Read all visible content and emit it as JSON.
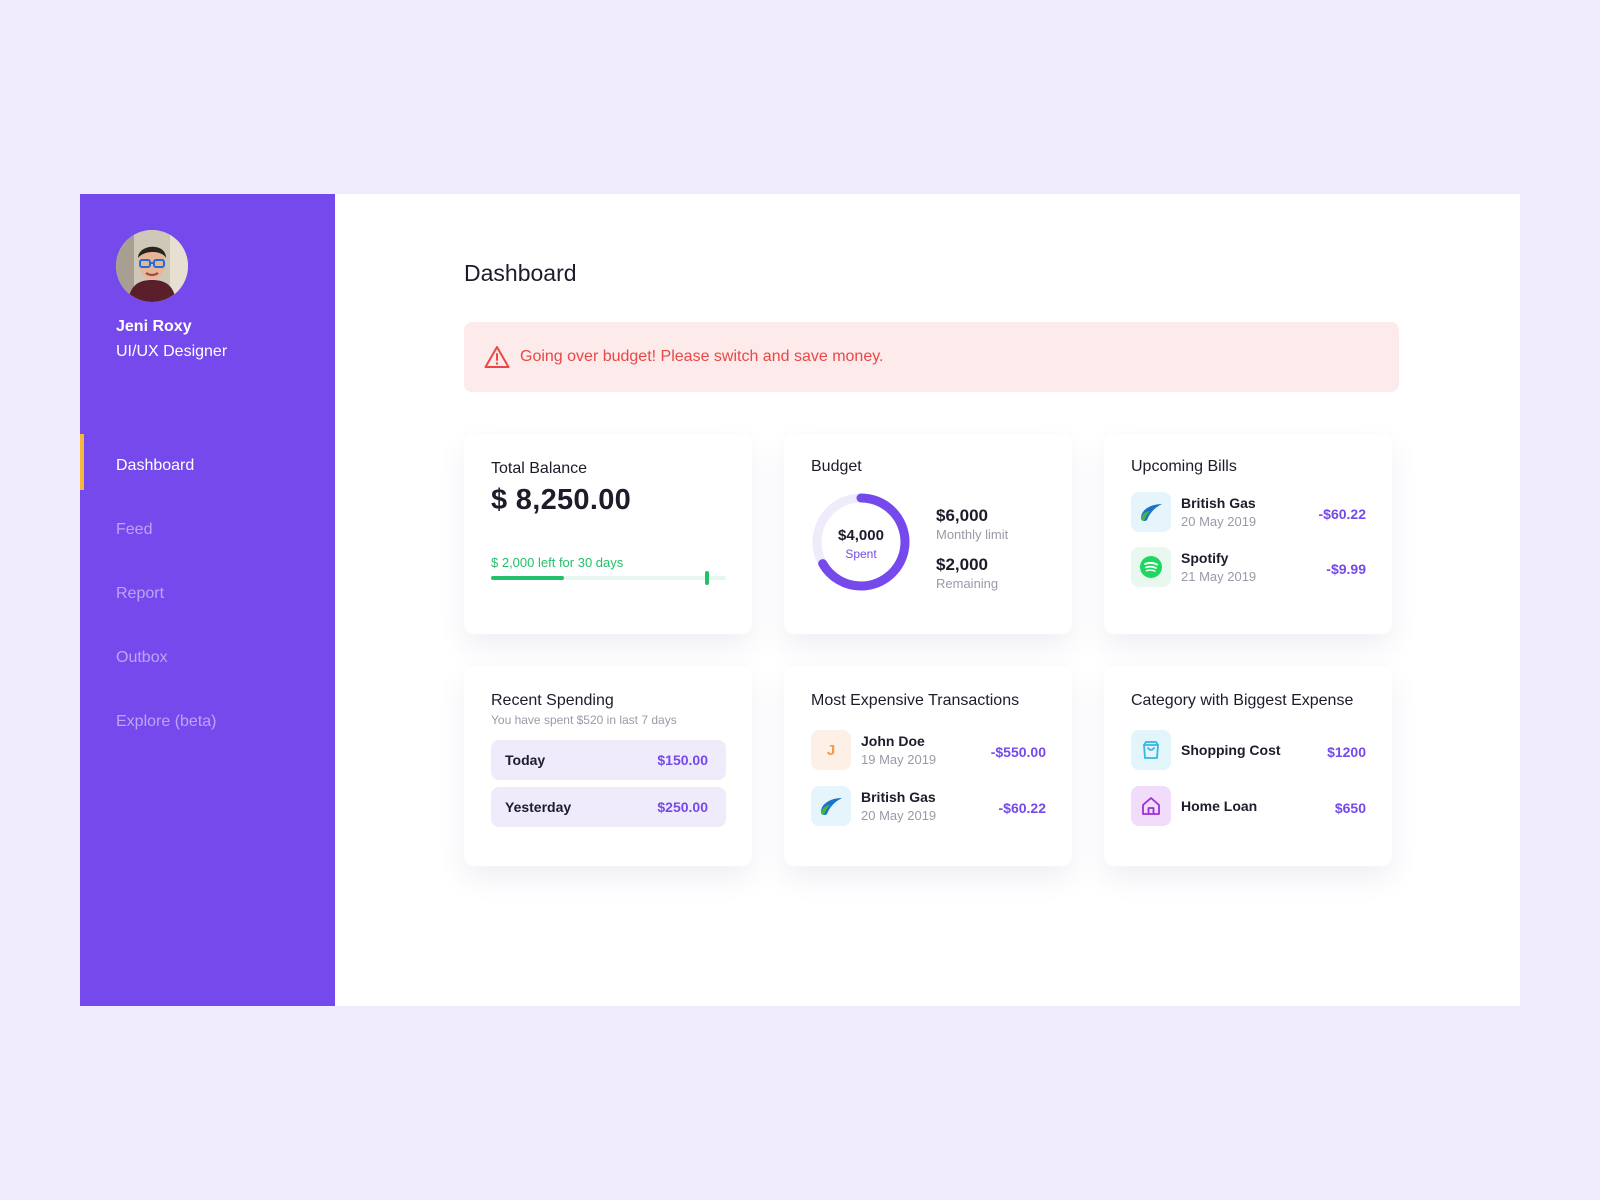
{
  "user": {
    "name": "Jeni Roxy",
    "role": "UI/UX Designer"
  },
  "nav": {
    "items": [
      {
        "label": "Dashboard",
        "active": true
      },
      {
        "label": "Feed",
        "active": false
      },
      {
        "label": "Report",
        "active": false
      },
      {
        "label": "Outbox",
        "active": false
      },
      {
        "label": "Explore (beta)",
        "active": false
      }
    ]
  },
  "page": {
    "title": "Dashboard"
  },
  "alert": {
    "message": "Going over budget! Please switch and save money.",
    "icon": "warning-icon"
  },
  "total_balance": {
    "title": "Total Balance",
    "amount": "$ 8,250.00",
    "left_text": "$ 2,000 left for 30 days",
    "progress_fraction": 0.31,
    "marker_fraction": 0.92
  },
  "budget": {
    "title": "Budget",
    "spent_amount": "$4,000",
    "spent_label": "Spent",
    "spent_fraction": 0.667,
    "limit_amount": "$6,000",
    "limit_label": "Monthly limit",
    "remaining_amount": "$2,000",
    "remaining_label": "Remaining"
  },
  "upcoming_bills": {
    "title": "Upcoming Bills",
    "items": [
      {
        "name": "British Gas",
        "date": "20 May 2019",
        "amount": "-$60.22",
        "icon": "british-gas-logo-icon"
      },
      {
        "name": "Spotify",
        "date": "21 May 2019",
        "amount": "-$9.99",
        "icon": "spotify-logo-icon"
      }
    ]
  },
  "recent_spending": {
    "title": "Recent Spending",
    "subtitle": "You have spent $520 in last 7 days",
    "items": [
      {
        "label": "Today",
        "amount": "$150.00"
      },
      {
        "label": "Yesterday",
        "amount": "$250.00"
      }
    ]
  },
  "expensive_transactions": {
    "title": "Most Expensive Transactions",
    "items": [
      {
        "name": "John Doe",
        "date": "19 May 2019",
        "amount": "-$550.00",
        "initial": "J"
      },
      {
        "name": "British Gas",
        "date": "20 May 2019",
        "amount": "-$60.22",
        "icon": "british-gas-logo-icon"
      }
    ]
  },
  "biggest_category": {
    "title": "Category with Biggest Expense",
    "items": [
      {
        "name": "Shopping Cost",
        "amount": "$1200",
        "icon": "shopping-bag-icon"
      },
      {
        "name": "Home Loan",
        "amount": "$650",
        "icon": "home-icon"
      }
    ]
  },
  "colors": {
    "brand": "#7549ec",
    "active_marker": "#f5b73b",
    "alert_text": "#ea4747",
    "alert_bg": "#fdeaea",
    "positive": "#23c06a"
  }
}
